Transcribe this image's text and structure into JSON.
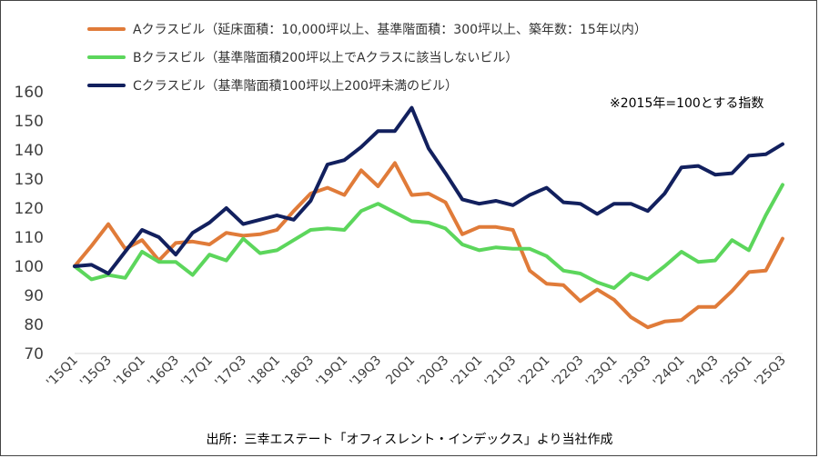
{
  "chart_data": {
    "type": "line",
    "note": "※2015年=100とする指数",
    "source": "出所：三幸エステート「オフィスレント・インデックス」より当社作成",
    "ylim": [
      70,
      160
    ],
    "yticks": [
      70,
      80,
      90,
      100,
      110,
      120,
      130,
      140,
      150,
      160
    ],
    "x": [
      "'15Q1",
      "'15Q2",
      "'15Q3",
      "'15Q4",
      "'16Q1",
      "'16Q2",
      "'16Q3",
      "'16Q4",
      "'17Q1",
      "'17Q2",
      "'17Q3",
      "'17Q4",
      "'18Q1",
      "'18Q2",
      "'18Q3",
      "'18Q4",
      "'19Q1",
      "'19Q2",
      "'19Q3",
      "'19Q4",
      "20Q1",
      "'20Q2",
      "'20Q3",
      "'20Q4",
      "'21Q1",
      "'21Q2",
      "'21Q3",
      "'21Q4",
      "'22Q1",
      "'22Q2",
      "'22Q3",
      "'22Q4",
      "'23Q1",
      "'23Q2",
      "'23Q3",
      "'23Q4",
      "'24Q1",
      "'24Q2",
      "'24Q3",
      "'24Q4",
      "'25Q1",
      "'25Q2",
      "'25Q3"
    ],
    "xtick_labels": [
      "'15Q1",
      "'15Q3",
      "'16Q1",
      "'16Q3",
      "'17Q1",
      "'17Q3",
      "'18Q1",
      "'18Q3",
      "'19Q1",
      "'19Q3",
      "20Q1",
      "'20Q3",
      "'21Q1",
      "'21Q3",
      "'22Q1",
      "'22Q3",
      "'23Q1",
      "'23Q3",
      "'24Q1",
      "'24Q3",
      "'25Q1",
      "'25Q3"
    ],
    "series": [
      {
        "name": "Aクラスビル（延床面積：10,000坪以上、基準階面積：300坪以上、築年数：15年以内）",
        "color": "#E07B39",
        "values": [
          100,
          107,
          114.5,
          106,
          109,
          102,
          108,
          108.5,
          107.5,
          111.5,
          110.5,
          111,
          112.5,
          119,
          125,
          127,
          124.5,
          133,
          127.5,
          135.5,
          124.5,
          125,
          122,
          111,
          113.5,
          113.5,
          112.5,
          98.5,
          94,
          93.5,
          88,
          92,
          88.5,
          82.5,
          79,
          81,
          81.5,
          86,
          86,
          91.5,
          98,
          98.5,
          109.5
        ]
      },
      {
        "name": "Bクラスビル（基準階面積200坪以上でAクラスに該当しないビル）",
        "color": "#5CD65C",
        "values": [
          100,
          95.5,
          97,
          96,
          105,
          101.5,
          101.5,
          97,
          104,
          102,
          109.5,
          104.5,
          105.5,
          109,
          112.5,
          113,
          112.5,
          119,
          121.5,
          118.5,
          115.5,
          115,
          113,
          107.5,
          105.5,
          106.5,
          106,
          106,
          103.5,
          98.5,
          97.5,
          94.5,
          92.5,
          97.5,
          95.5,
          100,
          105,
          101.5,
          102,
          109,
          105.5,
          117.5,
          128
        ]
      },
      {
        "name": "Cクラスビル（基準階面積100坪以上200坪未満のビル）",
        "color": "#12205E",
        "values": [
          100,
          100.5,
          97.5,
          105,
          112.5,
          110,
          104,
          111.5,
          115,
          120,
          114.5,
          116,
          117.5,
          116,
          122.5,
          135,
          136.5,
          141,
          146.5,
          146.5,
          154.5,
          140.5,
          132,
          123,
          121.5,
          122.5,
          121,
          124.5,
          127,
          122,
          121.5,
          118,
          121.5,
          121.5,
          119,
          125,
          134,
          134.5,
          131.5,
          132,
          138,
          138.5,
          142
        ]
      }
    ]
  }
}
